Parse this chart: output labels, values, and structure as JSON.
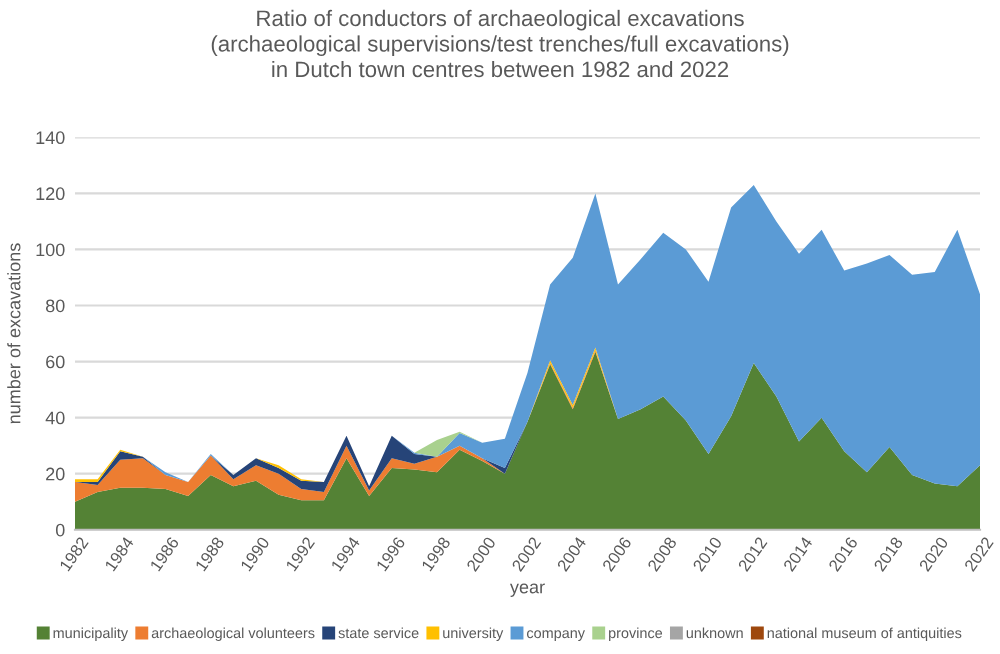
{
  "chart_data": {
    "type": "area",
    "stacked": true,
    "title": "Ratio of conductors of archaeological excavations\n(archaeological supervisions/test trenches/full excavations)\nin Dutch town centres between 1982 and 2022",
    "xlabel": "year",
    "ylabel": "number of excavations",
    "categories": [
      "1982",
      null,
      "1984",
      null,
      "1986",
      null,
      "1988",
      null,
      "1990",
      null,
      "1992",
      null,
      "1994",
      null,
      "1996",
      null,
      "1998",
      null,
      "2000",
      null,
      "2002",
      null,
      "2004",
      null,
      "2006",
      null,
      "2008",
      null,
      "2010",
      null,
      "2012",
      null,
      "2014",
      null,
      "2016",
      null,
      "2018",
      null,
      "2020",
      null,
      "2022"
    ],
    "series": [
      {
        "name": "municipality",
        "color": "#548235",
        "values": [
          10,
          13.5,
          15,
          15,
          14.5,
          12,
          19.5,
          15.5,
          17.5,
          12.5,
          10.5,
          10.5,
          25.5,
          12,
          22,
          21.5,
          20.5,
          28.5,
          24.5,
          20,
          38.5,
          59,
          43,
          63.5,
          39.5,
          43,
          47.5,
          39,
          27,
          40.5,
          59.5,
          47.5,
          31.5,
          40,
          28,
          20.5,
          29.5,
          19.5,
          16.5,
          15.5,
          23
        ]
      },
      {
        "name": "archaeological volunteers",
        "color": "#ed7d31",
        "values": [
          7,
          2.5,
          10,
          10.5,
          5,
          5,
          7,
          2.5,
          5.5,
          7.5,
          4,
          3,
          4.5,
          2,
          3.5,
          2,
          5.5,
          1.5,
          1,
          0,
          0,
          0.5,
          0.5,
          0.5,
          0,
          0,
          0,
          0,
          0,
          0,
          0,
          0,
          0,
          0,
          0,
          0,
          0,
          0,
          0,
          0,
          0
        ]
      },
      {
        "name": "state service",
        "color": "#264478",
        "values": [
          0,
          1,
          3,
          0.5,
          0,
          0,
          0,
          1.5,
          2.5,
          2,
          3,
          3.5,
          3.5,
          1.5,
          8,
          3.5,
          0,
          0,
          0,
          2,
          0,
          0,
          0,
          0,
          0,
          0,
          0,
          0,
          0,
          0,
          0,
          0,
          0,
          0,
          0,
          0,
          0,
          0,
          0,
          0,
          0
        ]
      },
      {
        "name": "university",
        "color": "#ffc000",
        "values": [
          1,
          1,
          0.5,
          0,
          0,
          0,
          0,
          0,
          0,
          1,
          0.5,
          0,
          0,
          0,
          0,
          0,
          0,
          0,
          0,
          0,
          0,
          1,
          1,
          1,
          0,
          0,
          0,
          0,
          0,
          0,
          0,
          0,
          0,
          0,
          0,
          0,
          0,
          0,
          0,
          0,
          0
        ]
      },
      {
        "name": "company",
        "color": "#5b9bd5",
        "values": [
          0,
          0,
          0,
          0,
          1,
          0,
          0.5,
          0,
          0,
          0,
          0,
          0,
          0,
          0,
          0,
          0.5,
          0,
          4.5,
          5.5,
          10.5,
          17.5,
          27,
          52.5,
          55,
          48,
          53.5,
          58.5,
          61,
          61.5,
          74.5,
          63.5,
          62.5,
          67,
          67,
          64.5,
          74.5,
          68.5,
          71.5,
          75.5,
          91.5,
          61
        ]
      },
      {
        "name": "province",
        "color": "#a9d18e",
        "values": [
          null,
          null,
          null,
          null,
          null,
          null,
          null,
          null,
          null,
          null,
          null,
          null,
          null,
          null,
          null,
          0,
          6,
          0.5,
          0,
          null,
          null,
          null,
          null,
          null,
          null,
          null,
          null,
          null,
          null,
          null,
          null,
          null,
          null,
          null,
          null,
          null,
          null,
          null,
          null,
          null,
          null
        ]
      },
      {
        "name": "unknown",
        "color": "#a5a5a5",
        "values": [
          null,
          null,
          null,
          null,
          null,
          null,
          null,
          null,
          null,
          null,
          null,
          null,
          null,
          null,
          null,
          null,
          null,
          null,
          null,
          null,
          null,
          null,
          null,
          null,
          null,
          null,
          null,
          null,
          null,
          null,
          null,
          null,
          null,
          null,
          null,
          null,
          null,
          null,
          null,
          null,
          null
        ]
      },
      {
        "name": "national museum of antiquities",
        "color": "#9e480e",
        "values": [
          null,
          null,
          null,
          null,
          null,
          null,
          null,
          null,
          null,
          null,
          null,
          null,
          null,
          null,
          null,
          null,
          null,
          null,
          null,
          null,
          null,
          null,
          null,
          null,
          null,
          null,
          null,
          null,
          null,
          null,
          null,
          null,
          null,
          null,
          null,
          null,
          null,
          null,
          null,
          null,
          null
        ]
      }
    ],
    "ylim": [
      0,
      140
    ],
    "yticks": [
      0,
      20,
      40,
      60,
      80,
      100,
      120,
      140
    ],
    "grid": "y",
    "legend": "bottom"
  }
}
